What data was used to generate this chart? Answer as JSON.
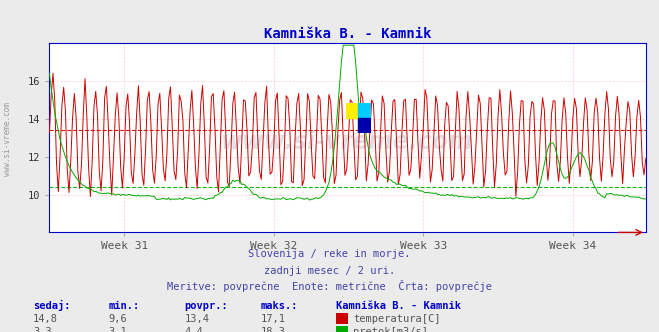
{
  "title": "Kamniška B. - Kamnik",
  "title_color": "#0000cc",
  "bg_color": "#ebebeb",
  "plot_bg_color": "#ffffff",
  "grid_color": "#ffcccc",
  "axis_color": "#0000cc",
  "xlabel_weeks": [
    "Week 31",
    "Week 32",
    "Week 33",
    "Week 34"
  ],
  "yticks_temp": [
    10,
    12,
    14,
    16
  ],
  "temp_color": "#cc0000",
  "flow_color": "#00aa00",
  "avg_temp": 13.4,
  "avg_flow": 4.4,
  "watermark": "www.si-vreme.com",
  "subtitle1": "Slovenija / reke in morje.",
  "subtitle2": "zadnji mesec / 2 uri.",
  "subtitle3": "Meritve: povprečne  Enote: metrične  Črta: povprečje",
  "subtitle_color": "#4444aa",
  "footer_color": "#0000cc",
  "legend_title": "Kamniška B. - Kamnik",
  "stat_headers": [
    "sedaj:",
    "min.:",
    "povpr.:",
    "maks.:"
  ],
  "stat_temp": [
    "14,8",
    "9,6",
    "13,4",
    "17,1"
  ],
  "stat_flow": [
    "3,3",
    "3,1",
    "4,4",
    "18,3"
  ],
  "legend_temp": "temperatura[C]",
  "legend_flow": "pretok[m3/s]",
  "n_points": 336,
  "temp_min": 9.6,
  "temp_max": 17.1,
  "flow_min": 3.1,
  "flow_max": 18.3,
  "ymin": 8.0,
  "ymax": 18.0,
  "flow_display_max": 18.5
}
